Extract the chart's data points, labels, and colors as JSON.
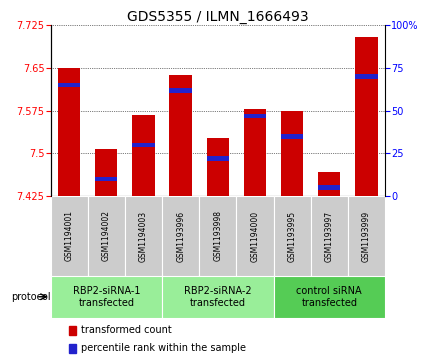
{
  "title": "GDS5355 / ILMN_1666493",
  "samples": [
    "GSM1194001",
    "GSM1194002",
    "GSM1194003",
    "GSM1193996",
    "GSM1193998",
    "GSM1194000",
    "GSM1193995",
    "GSM1193997",
    "GSM1193999"
  ],
  "transformed_count": [
    7.65,
    7.507,
    7.568,
    7.638,
    7.527,
    7.578,
    7.575,
    7.468,
    7.705
  ],
  "percentile_rank": [
    65,
    10,
    30,
    62,
    22,
    47,
    35,
    5,
    70
  ],
  "y_min": 7.425,
  "y_max": 7.725,
  "y_ticks": [
    7.425,
    7.5,
    7.575,
    7.65,
    7.725
  ],
  "y2_ticks": [
    0,
    25,
    50,
    75,
    100
  ],
  "bar_color": "#cc0000",
  "percentile_color": "#2222cc",
  "groups": [
    {
      "label": "RBP2-siRNA-1\ntransfected",
      "start": 0,
      "end": 3,
      "color": "#99ee99"
    },
    {
      "label": "RBP2-siRNA-2\ntransfected",
      "start": 3,
      "end": 6,
      "color": "#99ee99"
    },
    {
      "label": "control siRNA\ntransfected",
      "start": 6,
      "end": 9,
      "color": "#55cc55"
    }
  ],
  "legend_items": [
    {
      "label": "transformed count",
      "color": "#cc0000"
    },
    {
      "label": "percentile rank within the sample",
      "color": "#2222cc"
    }
  ],
  "protocol_label": "protocol",
  "bg_color": "#cccccc",
  "plot_bg": "#ffffff",
  "title_fontsize": 10,
  "tick_fontsize": 7,
  "sample_fontsize": 5.5,
  "group_fontsize": 7,
  "legend_fontsize": 7
}
